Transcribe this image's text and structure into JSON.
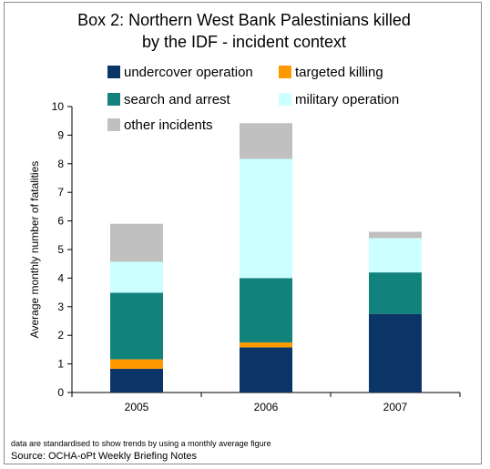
{
  "chart_data": {
    "type": "bar",
    "stacked": true,
    "title": [
      "Box 2: Northern West Bank Palestinians killed",
      "by the IDF - incident context"
    ],
    "ylabel": "Average monthly number of fatalities",
    "xlabel": "",
    "ylim": [
      0,
      10
    ],
    "yticks": [
      0,
      1,
      2,
      3,
      4,
      5,
      6,
      7,
      8,
      9,
      10
    ],
    "categories": [
      "2005",
      "2006",
      "2007"
    ],
    "series": [
      {
        "name": "undercover operation",
        "color": "#0b3566",
        "values": [
          0.83,
          1.58,
          2.75
        ]
      },
      {
        "name": "targeted killing",
        "color": "#ff9900",
        "values": [
          0.33,
          0.17,
          0.0
        ]
      },
      {
        "name": "search and arrest",
        "color": "#12837c",
        "values": [
          2.33,
          2.25,
          1.45
        ]
      },
      {
        "name": "military operation",
        "color": "#ccffff",
        "values": [
          1.08,
          4.17,
          1.2
        ]
      },
      {
        "name": "other incidents",
        "color": "#c0c0c0",
        "values": [
          1.33,
          1.25,
          0.22
        ]
      }
    ],
    "legend_position": "top",
    "grid": false
  },
  "notes": {
    "standardised": "data are standardised to show  trends by using a monthly average figure",
    "source": "Source: OCHA-oPt Weekly Briefing Notes"
  }
}
